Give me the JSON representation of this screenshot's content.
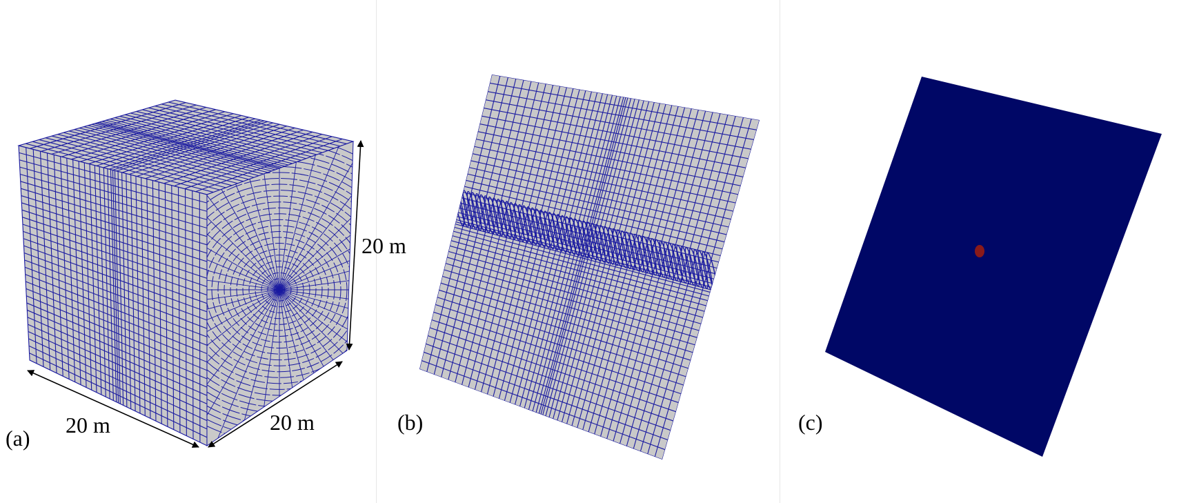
{
  "panels": [
    {
      "label": "(a)",
      "dimensions": {
        "width": "20 m",
        "depth": "20 m",
        "height": "20 m"
      }
    },
    {
      "label": "(b)"
    },
    {
      "label": "(c)"
    }
  ],
  "colors": {
    "background": "#ffffff",
    "mesh_face": "#c9c9c9",
    "mesh_line": "#1a1aa0",
    "solid_fill": "#000766",
    "source_point": "#8a1a1a"
  }
}
